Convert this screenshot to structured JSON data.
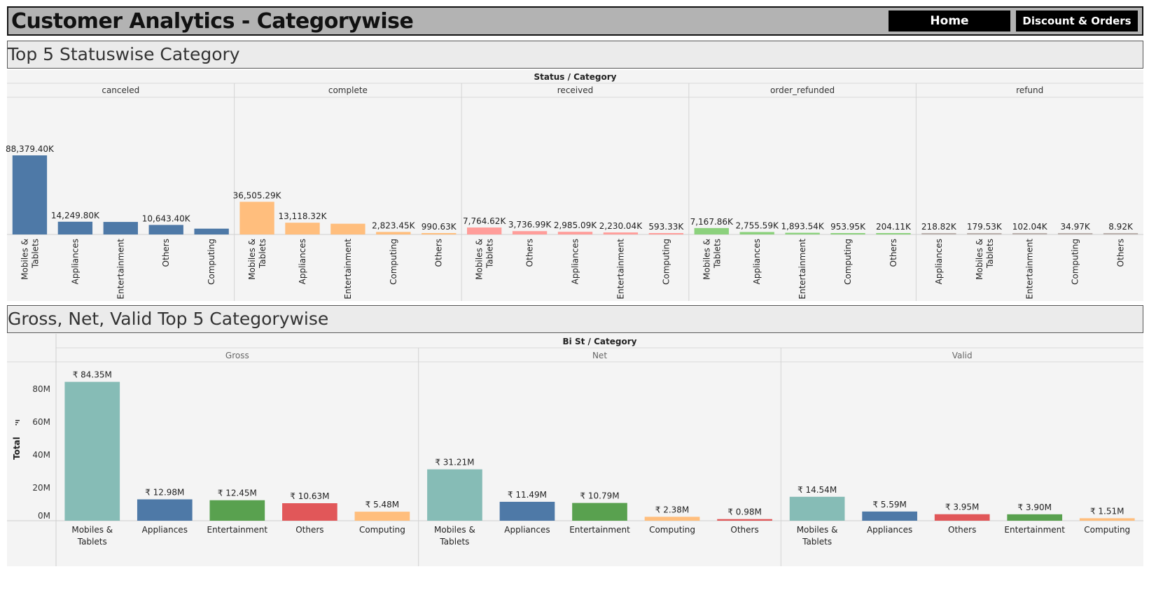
{
  "header": {
    "title": "Customer Analytics - Categorywise",
    "home_label": "Home",
    "discount_label": "Discount & Orders"
  },
  "sections": {
    "top_title": "Top 5 Statuswise Category",
    "bottom_title": "Gross, Net, Valid Top 5 Categorywise"
  },
  "colors": {
    "mobiles": "#86bcb6",
    "appliances": "#4e79a7",
    "entertainment": "#59a14f",
    "others": "#e15759",
    "computing": "#ffbe7d",
    "canceled": "#4e79a7",
    "complete": "#ffbe7d",
    "received": "#ff9d9a",
    "order_refunded": "#8cd17d",
    "refund": "#bab0ac"
  },
  "chart_data": [
    {
      "type": "bar",
      "title": "Status / Category",
      "panes": [
        {
          "name": "canceled",
          "color": "#4e79a7",
          "categories": [
            "Mobiles &\nTablets",
            "Appliances",
            "Entertainment",
            "Others",
            "Computing"
          ],
          "values": [
            88379.4,
            14249.8,
            14000,
            10643.4,
            6500
          ],
          "labels": [
            "88,379.40K",
            "14,249.80K",
            "",
            "10,643.40K",
            ""
          ]
        },
        {
          "name": "complete",
          "color": "#ffbe7d",
          "categories": [
            "Mobiles &\nTablets",
            "Appliances",
            "Entertainment",
            "Computing",
            "Others"
          ],
          "values": [
            36505.29,
            13118.32,
            12000,
            2823.45,
            990.63
          ],
          "labels": [
            "36,505.29K",
            "13,118.32K",
            "",
            "2,823.45K",
            "990.63K"
          ]
        },
        {
          "name": "received",
          "color": "#ff9d9a",
          "categories": [
            "Mobiles &\nTablets",
            "Others",
            "Appliances",
            "Entertainment",
            "Computing"
          ],
          "values": [
            7764.62,
            3736.99,
            2985.09,
            2230.04,
            593.33
          ],
          "labels": [
            "7,764.62K",
            "3,736.99K",
            "2,985.09K",
            "2,230.04K",
            "593.33K"
          ]
        },
        {
          "name": "order_refunded",
          "color": "#8cd17d",
          "categories": [
            "Mobiles &\nTablets",
            "Appliances",
            "Entertainment",
            "Computing",
            "Others"
          ],
          "values": [
            7167.86,
            2755.59,
            1893.54,
            953.95,
            204.11
          ],
          "labels": [
            "7,167.86K",
            "2,755.59K",
            "1,893.54K",
            "953.95K",
            "204.11K"
          ]
        },
        {
          "name": "refund",
          "color": "#bab0ac",
          "categories": [
            "Appliances",
            "Mobiles &\nTablets",
            "Entertainment",
            "Computing",
            "Others"
          ],
          "values": [
            218.82,
            179.53,
            102.04,
            34.97,
            8.92
          ],
          "labels": [
            "218.82K",
            "179.53K",
            "102.04K",
            "34.97K",
            "8.92K"
          ]
        }
      ],
      "ylim": [
        0,
        100000
      ]
    },
    {
      "type": "bar",
      "title": "Bi St / Category",
      "ylabel": "Total",
      "yticks": [
        "0M",
        "20M",
        "40M",
        "60M",
        "80M"
      ],
      "ytick_values": [
        0,
        20,
        40,
        60,
        80
      ],
      "ylim": [
        0,
        88
      ],
      "panes": [
        {
          "name": "Gross",
          "categories": [
            "Mobiles &\nTablets",
            "Appliances",
            "Entertainment",
            "Others",
            "Computing"
          ],
          "values": [
            84.35,
            12.98,
            12.45,
            10.63,
            5.48
          ],
          "labels": [
            "₹ 84.35M",
            "₹ 12.98M",
            "₹ 12.45M",
            "₹ 10.63M",
            "₹ 5.48M"
          ],
          "colors": [
            "#86bcb6",
            "#4e79a7",
            "#59a14f",
            "#e15759",
            "#ffbe7d"
          ]
        },
        {
          "name": "Net",
          "categories": [
            "Mobiles &\nTablets",
            "Appliances",
            "Entertainment",
            "Computing",
            "Others"
          ],
          "values": [
            31.21,
            11.49,
            10.79,
            2.38,
            0.98
          ],
          "labels": [
            "₹ 31.21M",
            "₹ 11.49M",
            "₹ 10.79M",
            "₹ 2.38M",
            "₹ 0.98M"
          ],
          "colors": [
            "#86bcb6",
            "#4e79a7",
            "#59a14f",
            "#ffbe7d",
            "#e15759"
          ]
        },
        {
          "name": "Valid",
          "categories": [
            "Mobiles &\nTablets",
            "Appliances",
            "Others",
            "Entertainment",
            "Computing"
          ],
          "values": [
            14.54,
            5.59,
            3.95,
            3.9,
            1.51
          ],
          "labels": [
            "₹ 14.54M",
            "₹ 5.59M",
            "₹ 3.95M",
            "₹ 3.90M",
            "₹ 1.51M"
          ],
          "colors": [
            "#86bcb6",
            "#4e79a7",
            "#e15759",
            "#59a14f",
            "#ffbe7d"
          ]
        }
      ]
    }
  ]
}
